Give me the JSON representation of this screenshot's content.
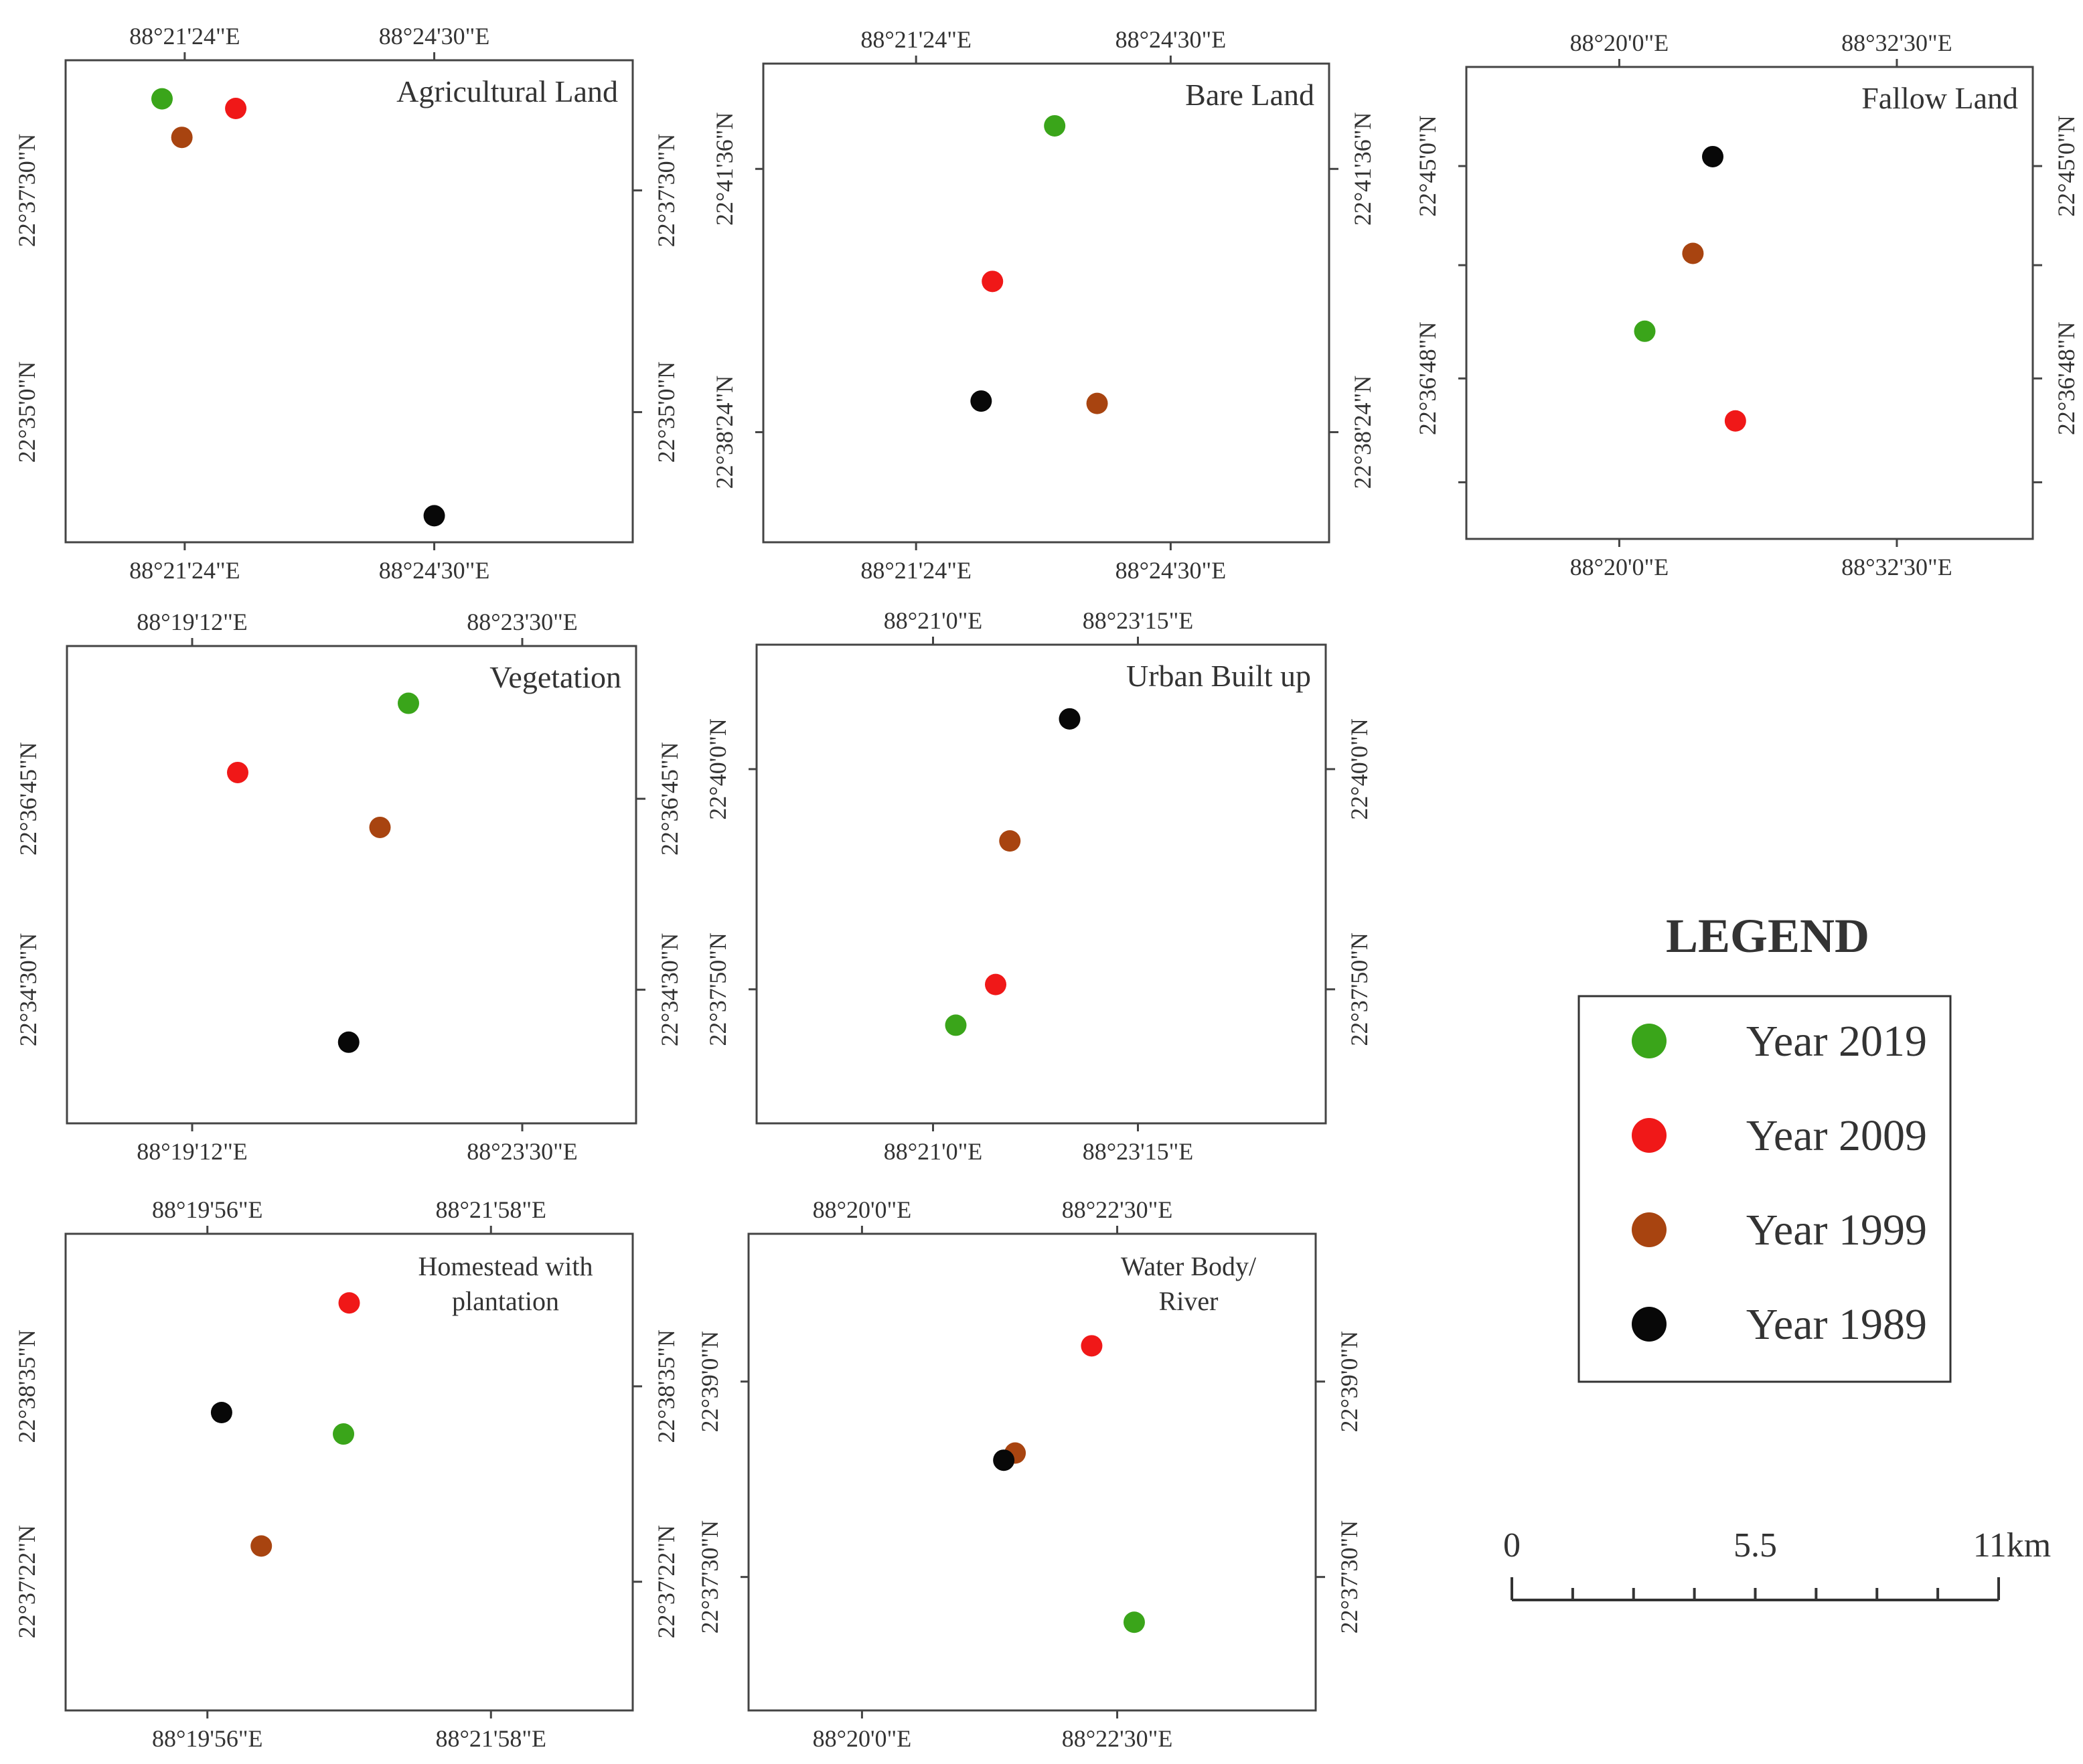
{
  "figure": {
    "legend_title": "LEGEND",
    "legend": [
      {
        "label": "Year 2019",
        "color": "#3aa51a"
      },
      {
        "label": "Year 2009",
        "color": "#f01818"
      },
      {
        "label": "Year 1999",
        "color": "#a84410"
      },
      {
        "label": "Year 1989",
        "color": "#080808"
      }
    ],
    "scale_bar": {
      "labels": [
        "0",
        "5.5",
        "11km"
      ]
    }
  },
  "chart_data": [
    {
      "type": "scatter",
      "title": "Agricultural Land",
      "title_lines": [
        "Agricultural Land"
      ],
      "x_ticks": [
        "88°21'24\"E",
        "88°24'30\"E"
      ],
      "y_ticks": [
        "22°37'30\"N",
        "22°35'0\"N"
      ],
      "right_ticks": [
        "22°37'30\"N",
        "22°35'0\"N"
      ],
      "xlim": [
        0,
        100
      ],
      "ylim": [
        0,
        100
      ],
      "points": [
        {
          "year": "2019",
          "x": 17,
          "y": 92
        },
        {
          "year": "2009",
          "x": 30,
          "y": 90
        },
        {
          "year": "1999",
          "x": 20.5,
          "y": 84
        },
        {
          "year": "1989",
          "x": 65,
          "y": 5.5
        }
      ]
    },
    {
      "type": "scatter",
      "title": "Bare Land",
      "title_lines": [
        "Bare Land"
      ],
      "x_ticks": [
        "88°21'24\"E",
        "88°24'30\"E"
      ],
      "y_ticks": [
        "22°41'36\"N",
        "22°38'24\"N"
      ],
      "right_ticks": [
        "22°41'36\"N",
        "22°38'24\"N"
      ],
      "xlim": [
        0,
        100
      ],
      "ylim": [
        0,
        100
      ],
      "points": [
        {
          "year": "2019",
          "x": 51.5,
          "y": 87
        },
        {
          "year": "2009",
          "x": 40.5,
          "y": 54.5
        },
        {
          "year": "1999",
          "x": 59,
          "y": 29
        },
        {
          "year": "1989",
          "x": 38.5,
          "y": 29.5
        }
      ]
    },
    {
      "type": "scatter",
      "title": "Fallow Land",
      "title_lines": [
        "Fallow Land"
      ],
      "x_ticks": [
        "88°20'0\"E",
        "88°32'30\"E"
      ],
      "y_ticks": [
        "22°45'0\"N",
        "22°36'48\"N"
      ],
      "right_ticks": [
        "22°45'0\"N",
        "22°36'48\"N"
      ],
      "xlim": [
        0,
        100
      ],
      "ylim": [
        0,
        100
      ],
      "points": [
        {
          "year": "2019",
          "x": 31.5,
          "y": 44
        },
        {
          "year": "2009",
          "x": 47.5,
          "y": 25
        },
        {
          "year": "1999",
          "x": 40,
          "y": 60.5
        },
        {
          "year": "1989",
          "x": 43.5,
          "y": 81
        }
      ]
    },
    {
      "type": "scatter",
      "title": "Vegetation",
      "title_lines": [
        "Vegetation"
      ],
      "x_ticks": [
        "88°19'12\"E",
        "88°23'30\"E"
      ],
      "y_ticks": [
        "22°36'45\"N",
        "22°34'30\"N"
      ],
      "right_ticks": [
        "22°36'45\"N",
        "22°34'30\"N"
      ],
      "xlim": [
        0,
        100
      ],
      "ylim": [
        0,
        100
      ],
      "points": [
        {
          "year": "2019",
          "x": 60,
          "y": 88
        },
        {
          "year": "2009",
          "x": 30,
          "y": 73.5
        },
        {
          "year": "1999",
          "x": 55,
          "y": 62
        },
        {
          "year": "1989",
          "x": 49.5,
          "y": 17
        }
      ]
    },
    {
      "type": "scatter",
      "title": "Urban Built up",
      "title_lines": [
        "Urban Built up"
      ],
      "x_ticks": [
        "88°21'0\"E",
        "88°23'15\"E"
      ],
      "y_ticks": [
        "22°40'0\"N",
        "22°37'50\"N"
      ],
      "right_ticks": [
        "22°40'0\"N",
        "22°37'50\"N"
      ],
      "xlim": [
        0,
        100
      ],
      "ylim": [
        0,
        100
      ],
      "points": [
        {
          "year": "2019",
          "x": 35,
          "y": 20.5
        },
        {
          "year": "2009",
          "x": 42,
          "y": 29
        },
        {
          "year": "1999",
          "x": 44.5,
          "y": 59
        },
        {
          "year": "1989",
          "x": 55,
          "y": 84.5
        }
      ]
    },
    {
      "type": "scatter",
      "title": "Homestead with plantation",
      "title_lines": [
        "Homestead with",
        "plantation"
      ],
      "x_ticks": [
        "88°19'56\"E",
        "88°21'58\"E"
      ],
      "y_ticks": [
        "22°38'35\"N",
        "22°37'22\"N"
      ],
      "right_ticks": [
        "22°38'35\"N",
        "22°37'22\"N"
      ],
      "xlim": [
        0,
        100
      ],
      "ylim": [
        0,
        100
      ],
      "points": [
        {
          "year": "2019",
          "x": 49,
          "y": 58
        },
        {
          "year": "2009",
          "x": 50,
          "y": 85.5
        },
        {
          "year": "1999",
          "x": 34.5,
          "y": 34.5
        },
        {
          "year": "1989",
          "x": 27.5,
          "y": 62.5
        }
      ]
    },
    {
      "type": "scatter",
      "title": "Water Body/ River",
      "title_lines": [
        "Water Body/",
        "River"
      ],
      "x_ticks": [
        "88°20'0\"E",
        "88°22'30\"E"
      ],
      "y_ticks": [
        "22°39'0\"N",
        "22°37'30\"N"
      ],
      "right_ticks": [
        "22°39'0\"N",
        "22°37'30\"N"
      ],
      "xlim": [
        0,
        100
      ],
      "ylim": [
        0,
        100
      ],
      "points": [
        {
          "year": "2019",
          "x": 68,
          "y": 18.5
        },
        {
          "year": "2009",
          "x": 60.5,
          "y": 76.5
        },
        {
          "year": "1999",
          "x": 47,
          "y": 54
        },
        {
          "year": "1989",
          "x": 45,
          "y": 52.5
        }
      ]
    }
  ]
}
